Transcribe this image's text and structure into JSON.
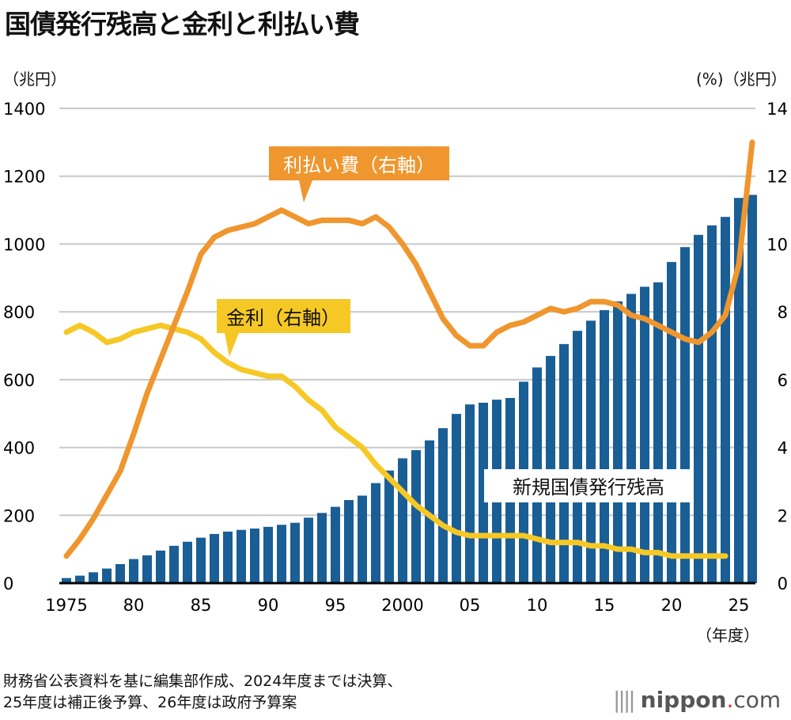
{
  "title": "国債発行残高と金利と利払い費",
  "left_unit": "（兆円）",
  "right_unit": "(%)（兆円）",
  "x_unit": "（年度）",
  "footnote_lines": [
    "財務省公表資料を基に編集部作成、2024年度までは決算、",
    "25年度は補正後予算、26年度は政府予算案"
  ],
  "logo": {
    "name": "nippon",
    "tld": ".com"
  },
  "chart_data": {
    "type": "bar+line",
    "title": "国債発行残高と金利と利払い費",
    "x_tick_labels": [
      {
        "year": 1975,
        "label": "1975"
      },
      {
        "year": 1980,
        "label": "80"
      },
      {
        "year": 1985,
        "label": "85"
      },
      {
        "year": 1990,
        "label": "90"
      },
      {
        "year": 1995,
        "label": "95"
      },
      {
        "year": 2000,
        "label": "2000"
      },
      {
        "year": 2005,
        "label": "05"
      },
      {
        "year": 2010,
        "label": "10"
      },
      {
        "year": 2015,
        "label": "15"
      },
      {
        "year": 2020,
        "label": "20"
      },
      {
        "year": 2025,
        "label": "25"
      }
    ],
    "y_left": {
      "range": [
        0,
        1400
      ],
      "ticks": [
        0,
        200,
        400,
        600,
        800,
        1000,
        1200,
        1400
      ],
      "unit": "兆円"
    },
    "y_right": {
      "range": [
        0,
        14
      ],
      "ticks": [
        0,
        2,
        4,
        6,
        8,
        10,
        12,
        14
      ],
      "unit": "%・兆円"
    },
    "grid": true,
    "colors": {
      "bars": "#1a5e96",
      "interest_payments": "#f0962e",
      "interest_rate": "#f6c825"
    },
    "series": [
      {
        "name": "新規国債発行残高",
        "type": "bar",
        "axis": "left",
        "start_year": 1975,
        "values": [
          15,
          22,
          32,
          43,
          56,
          71,
          82,
          96,
          110,
          122,
          134,
          145,
          152,
          157,
          161,
          166,
          172,
          178,
          193,
          207,
          225,
          245,
          258,
          295,
          332,
          368,
          392,
          421,
          457,
          499,
          527,
          532,
          541,
          546,
          594,
          636,
          670,
          705,
          744,
          774,
          805,
          831,
          853,
          874,
          887,
          947,
          991,
          1027,
          1055,
          1080,
          1136,
          1145
        ]
      },
      {
        "name": "利払い費（右軸）",
        "type": "line",
        "axis": "right",
        "start_year": 1975,
        "values": [
          0.8,
          1.3,
          1.9,
          2.6,
          3.3,
          4.4,
          5.6,
          6.6,
          7.6,
          8.6,
          9.7,
          10.2,
          10.4,
          10.5,
          10.6,
          10.8,
          11.0,
          10.8,
          10.6,
          10.7,
          10.7,
          10.7,
          10.6,
          10.8,
          10.5,
          10.0,
          9.4,
          8.6,
          7.8,
          7.3,
          7.0,
          7.0,
          7.4,
          7.6,
          7.7,
          7.9,
          8.1,
          8.0,
          8.1,
          8.3,
          8.3,
          8.2,
          7.9,
          7.8,
          7.6,
          7.4,
          7.2,
          7.1,
          7.4,
          7.9,
          9.4,
          13.0
        ]
      },
      {
        "name": "金利（右軸）",
        "type": "line",
        "axis": "right",
        "start_year": 1975,
        "values": [
          7.4,
          7.6,
          7.4,
          7.1,
          7.2,
          7.4,
          7.5,
          7.6,
          7.5,
          7.4,
          7.2,
          6.8,
          6.5,
          6.3,
          6.2,
          6.1,
          6.1,
          5.8,
          5.4,
          5.1,
          4.6,
          4.3,
          4.0,
          3.5,
          3.1,
          2.7,
          2.3,
          2.0,
          1.7,
          1.5,
          1.4,
          1.4,
          1.4,
          1.4,
          1.4,
          1.3,
          1.2,
          1.2,
          1.2,
          1.1,
          1.1,
          1.0,
          1.0,
          0.9,
          0.9,
          0.8,
          0.8,
          0.8,
          0.8,
          0.8
        ]
      }
    ]
  }
}
